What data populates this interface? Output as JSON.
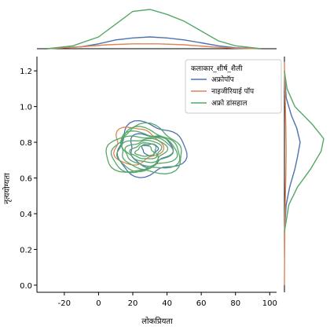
{
  "chart_data": {
    "type": "kde_joint",
    "xlabel": "लोकप्रियता",
    "ylabel": "नृत्ययोग्यता",
    "xlim": [
      -36,
      104
    ],
    "ylim": [
      -0.04,
      1.28
    ],
    "xticks": [
      -20,
      0,
      20,
      40,
      60,
      80,
      100
    ],
    "xtick_labels": [
      "-20",
      "0",
      "20",
      "40",
      "60",
      "80",
      "100"
    ],
    "yticks": [
      0.0,
      0.2,
      0.4,
      0.6,
      0.8,
      1.0,
      1.2
    ],
    "ytick_labels": [
      "0.0",
      "0.2",
      "0.4",
      "0.6",
      "0.8",
      "1.0",
      "1.2"
    ],
    "legend": {
      "title": "कलाकार_शीर्ष_शैली",
      "placement": "top-right",
      "entries": [
        {
          "label": "अफ्रोपॉप",
          "color": "#4C72B0"
        },
        {
          "label": "नाइजीरियाई पॉप",
          "color": "#DD8452"
        },
        {
          "label": "अफ्रो डांसहाल",
          "color": "#55A868"
        }
      ]
    },
    "series": [
      {
        "name": "अफ्रोपॉप",
        "color": "#4C72B0",
        "center": [
          30,
          0.76
        ],
        "spread": [
          18,
          0.13
        ],
        "levels": 3,
        "marg_x": [
          [
            -30,
            0.0
          ],
          [
            -10,
            0.02
          ],
          [
            0,
            0.05
          ],
          [
            10,
            0.09
          ],
          [
            20,
            0.11
          ],
          [
            30,
            0.12
          ],
          [
            40,
            0.11
          ],
          [
            50,
            0.09
          ],
          [
            60,
            0.06
          ],
          [
            70,
            0.03
          ],
          [
            80,
            0.01
          ],
          [
            95,
            0.0
          ]
        ],
        "marg_y": [
          [
            0.3,
            0.0
          ],
          [
            0.45,
            0.02
          ],
          [
            0.55,
            0.06
          ],
          [
            0.65,
            0.12
          ],
          [
            0.72,
            0.15
          ],
          [
            0.8,
            0.18
          ],
          [
            0.88,
            0.14
          ],
          [
            0.95,
            0.08
          ],
          [
            1.05,
            0.02
          ],
          [
            1.2,
            0.0
          ]
        ]
      },
      {
        "name": "नाइजीरियाई पॉप",
        "color": "#DD8452",
        "center": [
          22,
          0.78
        ],
        "spread": [
          16,
          0.12
        ],
        "levels": 1,
        "marg_x": [
          [
            -30,
            0.0
          ],
          [
            -10,
            0.02
          ],
          [
            5,
            0.04
          ],
          [
            20,
            0.05
          ],
          [
            35,
            0.05
          ],
          [
            50,
            0.04
          ],
          [
            65,
            0.02
          ],
          [
            80,
            0.005
          ],
          [
            95,
            0.0
          ]
        ],
        "marg_y": [
          [
            0.0,
            0.0
          ],
          [
            0.4,
            0.005
          ],
          [
            0.6,
            0.015
          ],
          [
            0.75,
            0.02
          ],
          [
            0.9,
            0.015
          ],
          [
            1.1,
            0.005
          ],
          [
            1.25,
            0.0
          ]
        ]
      },
      {
        "name": "अफ्रो डांसहाल",
        "color": "#55A868",
        "center": [
          27,
          0.75
        ],
        "spread": [
          20,
          0.12
        ],
        "levels": 8,
        "marg_x": [
          [
            -30,
            0.0
          ],
          [
            -15,
            0.03
          ],
          [
            0,
            0.12
          ],
          [
            10,
            0.25
          ],
          [
            20,
            0.38
          ],
          [
            30,
            0.4
          ],
          [
            40,
            0.35
          ],
          [
            50,
            0.28
          ],
          [
            60,
            0.18
          ],
          [
            70,
            0.08
          ],
          [
            80,
            0.03
          ],
          [
            95,
            0.0
          ]
        ],
        "marg_y": [
          [
            0.3,
            0.0
          ],
          [
            0.45,
            0.05
          ],
          [
            0.55,
            0.15
          ],
          [
            0.65,
            0.3
          ],
          [
            0.75,
            0.42
          ],
          [
            0.82,
            0.45
          ],
          [
            0.9,
            0.32
          ],
          [
            1.0,
            0.12
          ],
          [
            1.1,
            0.03
          ],
          [
            1.2,
            0.0
          ]
        ]
      }
    ]
  }
}
